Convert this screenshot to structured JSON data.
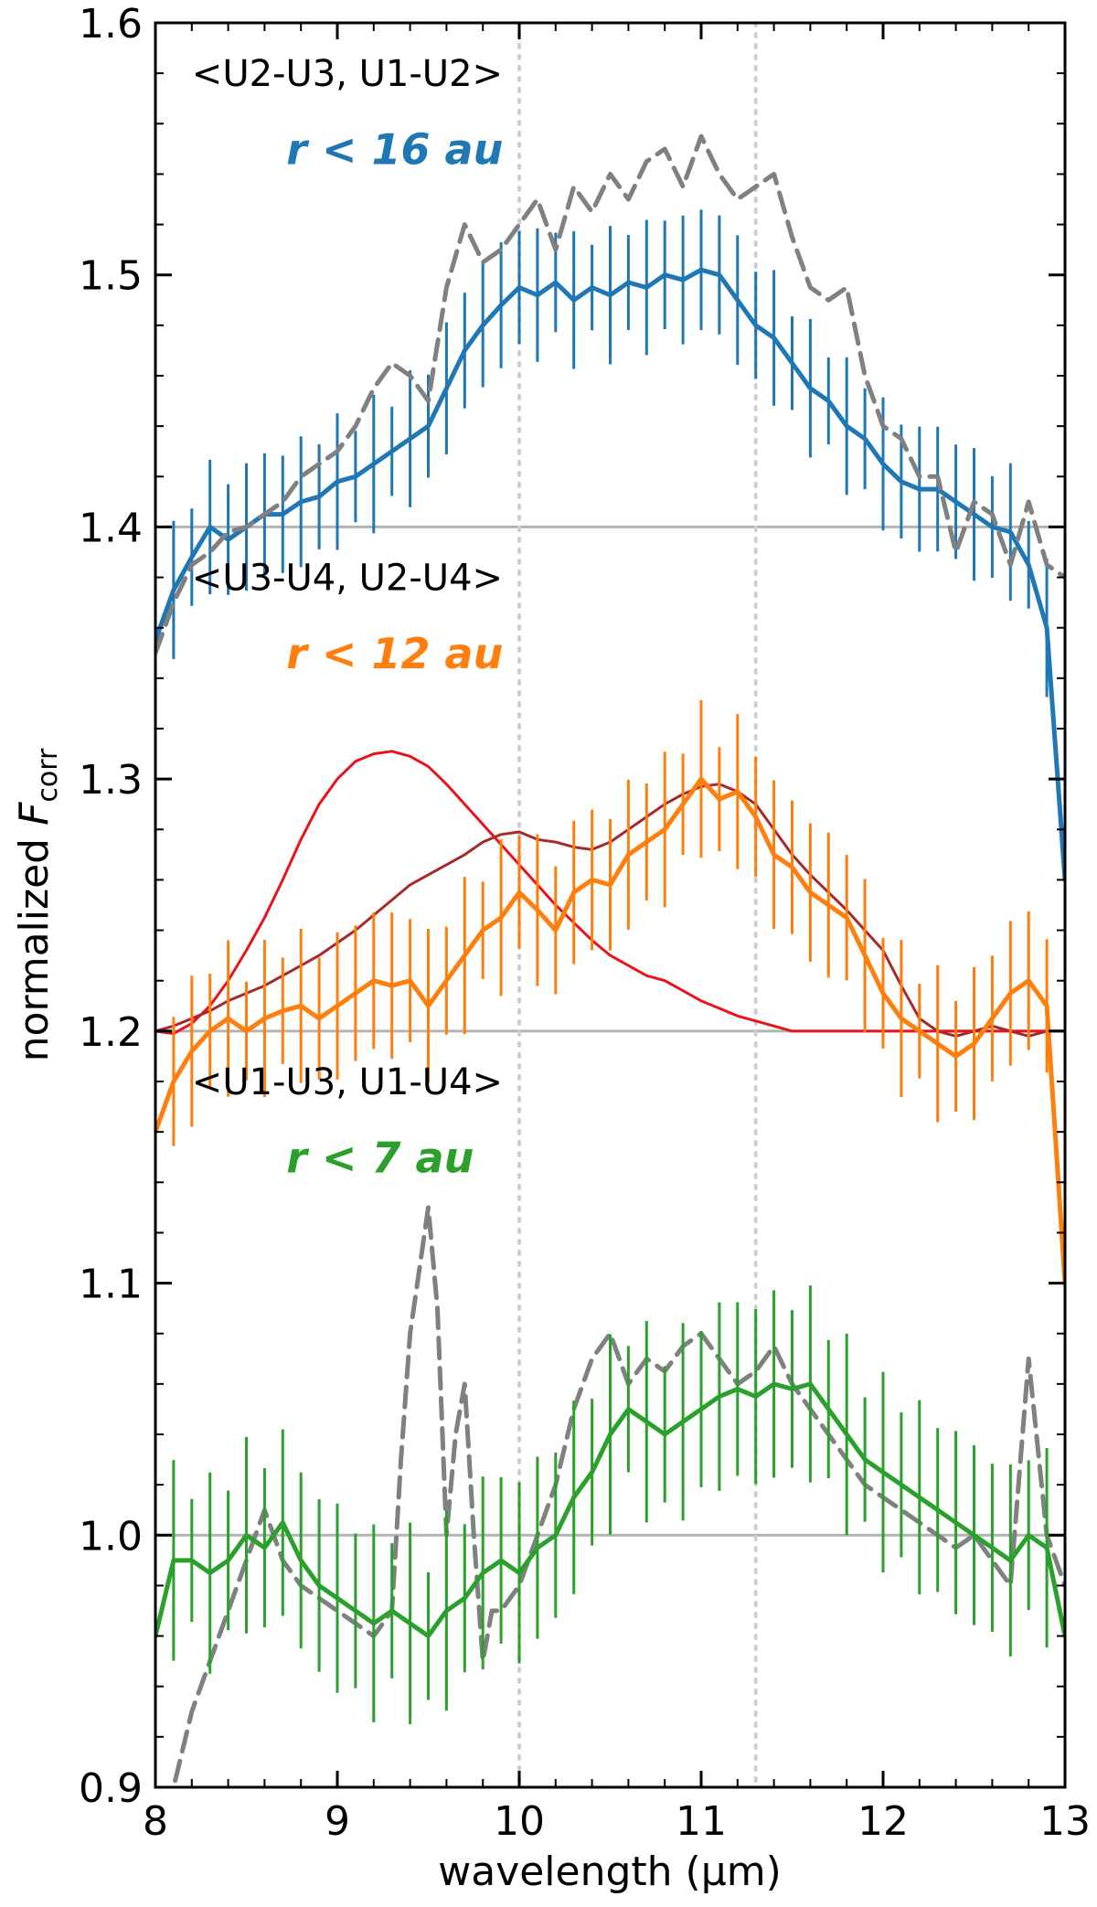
{
  "chart_data": {
    "type": "line",
    "xlabel": "wavelength (μm)",
    "ylabel_prefix": "normalized ",
    "ylabel_var": "F",
    "ylabel_sub": "corr",
    "xlim": [
      8,
      13
    ],
    "ylim": [
      0.9,
      1.6
    ],
    "xticks": [
      8,
      9,
      10,
      11,
      12,
      13
    ],
    "xtick_labels": [
      "8",
      "9",
      "10",
      "11",
      "12",
      "13"
    ],
    "yticks": [
      0.9,
      1.0,
      1.1,
      1.2,
      1.3,
      1.4,
      1.5,
      1.6
    ],
    "ytick_labels": [
      "0.9",
      "1.0",
      "1.1",
      "1.2",
      "1.3",
      "1.4",
      "1.5",
      "1.6"
    ],
    "vlines": [
      10.0,
      11.3
    ],
    "baselines": [
      1.0,
      1.2,
      1.4
    ],
    "annotations": [
      {
        "text": "<U2-U3, U1-U2>",
        "x": 8.2,
        "y": 1.575,
        "style": "plain",
        "color": "#000000"
      },
      {
        "text": "r < 16 au",
        "x": 8.72,
        "y": 1.544,
        "style": "bold-italic",
        "color": "#1f77b4"
      },
      {
        "text": "<U3-U4, U2-U4>",
        "x": 8.2,
        "y": 1.375,
        "style": "plain",
        "color": "#000000"
      },
      {
        "text": "r < 12 au",
        "x": 8.72,
        "y": 1.344,
        "style": "bold-italic",
        "color": "#ff7f0e"
      },
      {
        "text": "<U1-U3, U1-U4>",
        "x": 8.2,
        "y": 1.175,
        "style": "plain",
        "color": "#000000"
      },
      {
        "text": "r < 7 au",
        "x": 8.72,
        "y": 1.144,
        "style": "bold-italic",
        "color": "#2ca02c"
      }
    ],
    "series": [
      {
        "color": "#1f77b4",
        "style": "solid-errorbars",
        "err": 0.022,
        "x": [
          8.0,
          8.1,
          8.2,
          8.3,
          8.4,
          8.5,
          8.6,
          8.7,
          8.8,
          8.9,
          9.0,
          9.1,
          9.2,
          9.3,
          9.4,
          9.5,
          9.6,
          9.7,
          9.8,
          9.9,
          10.0,
          10.1,
          10.2,
          10.3,
          10.4,
          10.5,
          10.6,
          10.7,
          10.8,
          10.9,
          11.0,
          11.1,
          11.2,
          11.3,
          11.4,
          11.5,
          11.6,
          11.7,
          11.8,
          11.9,
          12.0,
          12.1,
          12.2,
          12.3,
          12.4,
          12.5,
          12.6,
          12.7,
          12.8,
          12.9,
          13.0
        ],
        "y": [
          1.355,
          1.375,
          1.388,
          1.4,
          1.395,
          1.4,
          1.405,
          1.405,
          1.41,
          1.412,
          1.418,
          1.42,
          1.425,
          1.43,
          1.435,
          1.44,
          1.455,
          1.47,
          1.48,
          1.488,
          1.495,
          1.492,
          1.497,
          1.49,
          1.495,
          1.492,
          1.497,
          1.495,
          1.5,
          1.498,
          1.502,
          1.5,
          1.49,
          1.48,
          1.475,
          1.465,
          1.455,
          1.45,
          1.44,
          1.435,
          1.425,
          1.418,
          1.415,
          1.415,
          1.41,
          1.405,
          1.4,
          1.398,
          1.385,
          1.36,
          1.26
        ]
      },
      {
        "color": "#808080",
        "style": "dashed",
        "x": [
          8.0,
          8.1,
          8.2,
          8.3,
          8.4,
          8.5,
          8.6,
          8.7,
          8.8,
          8.9,
          9.0,
          9.1,
          9.2,
          9.3,
          9.4,
          9.5,
          9.6,
          9.7,
          9.8,
          9.9,
          10.0,
          10.1,
          10.2,
          10.3,
          10.4,
          10.5,
          10.6,
          10.7,
          10.8,
          10.9,
          11.0,
          11.1,
          11.2,
          11.3,
          11.4,
          11.5,
          11.6,
          11.7,
          11.8,
          11.9,
          12.0,
          12.1,
          12.2,
          12.3,
          12.4,
          12.5,
          12.6,
          12.7,
          12.8,
          12.9,
          13.0
        ],
        "y": [
          1.35,
          1.37,
          1.385,
          1.39,
          1.398,
          1.4,
          1.405,
          1.41,
          1.42,
          1.425,
          1.43,
          1.44,
          1.455,
          1.465,
          1.46,
          1.45,
          1.495,
          1.52,
          1.505,
          1.51,
          1.52,
          1.53,
          1.51,
          1.535,
          1.525,
          1.54,
          1.53,
          1.545,
          1.55,
          1.535,
          1.555,
          1.54,
          1.53,
          1.535,
          1.54,
          1.515,
          1.495,
          1.49,
          1.495,
          1.46,
          1.44,
          1.435,
          1.42,
          1.42,
          1.39,
          1.41,
          1.405,
          1.385,
          1.41,
          1.385,
          1.38
        ]
      },
      {
        "color": "#e8141c",
        "style": "thin",
        "x": [
          8.0,
          8.1,
          8.2,
          8.3,
          8.4,
          8.5,
          8.6,
          8.7,
          8.8,
          8.9,
          9.0,
          9.1,
          9.2,
          9.3,
          9.4,
          9.5,
          9.6,
          9.7,
          9.8,
          9.9,
          10.0,
          10.1,
          10.2,
          10.3,
          10.4,
          10.5,
          10.6,
          10.7,
          10.8,
          10.9,
          11.0,
          11.1,
          11.2,
          11.3,
          11.4,
          11.5,
          11.6,
          11.7,
          11.8,
          11.9,
          12.0,
          12.1,
          12.2,
          12.3,
          12.4,
          12.5,
          12.6,
          12.7,
          12.8,
          12.9,
          13.0
        ],
        "y": [
          1.2,
          1.199,
          1.203,
          1.21,
          1.22,
          1.232,
          1.245,
          1.26,
          1.276,
          1.29,
          1.3,
          1.307,
          1.31,
          1.311,
          1.309,
          1.305,
          1.298,
          1.29,
          1.282,
          1.274,
          1.266,
          1.258,
          1.25,
          1.243,
          1.236,
          1.23,
          1.226,
          1.222,
          1.22,
          1.216,
          1.212,
          1.209,
          1.206,
          1.204,
          1.202,
          1.2,
          1.2,
          1.2,
          1.2,
          1.2,
          1.2,
          1.2,
          1.2,
          1.2,
          1.2,
          1.2,
          1.2,
          1.2,
          1.2,
          1.2,
          1.2
        ]
      },
      {
        "color": "#a52a2a",
        "style": "thin",
        "x": [
          8.0,
          8.1,
          8.2,
          8.3,
          8.4,
          8.5,
          8.6,
          8.7,
          8.8,
          8.9,
          9.0,
          9.1,
          9.2,
          9.3,
          9.4,
          9.5,
          9.6,
          9.7,
          9.8,
          9.9,
          10.0,
          10.1,
          10.2,
          10.3,
          10.4,
          10.5,
          10.6,
          10.7,
          10.8,
          10.9,
          11.0,
          11.1,
          11.2,
          11.3,
          11.4,
          11.5,
          11.6,
          11.7,
          11.8,
          11.9,
          12.0,
          12.1,
          12.2,
          12.3,
          12.4,
          12.5,
          12.6,
          12.7,
          12.8,
          12.9,
          13.0
        ],
        "y": [
          1.2,
          1.202,
          1.205,
          1.208,
          1.212,
          1.215,
          1.218,
          1.222,
          1.226,
          1.23,
          1.235,
          1.24,
          1.246,
          1.252,
          1.258,
          1.262,
          1.266,
          1.27,
          1.275,
          1.278,
          1.279,
          1.276,
          1.275,
          1.273,
          1.272,
          1.275,
          1.28,
          1.285,
          1.29,
          1.294,
          1.297,
          1.298,
          1.295,
          1.29,
          1.28,
          1.27,
          1.262,
          1.255,
          1.248,
          1.24,
          1.232,
          1.218,
          1.205,
          1.2,
          1.198,
          1.2,
          1.202,
          1.2,
          1.198,
          1.2,
          1.2
        ]
      },
      {
        "color": "#ff7f0e",
        "style": "solid-errorbars",
        "err": 0.025,
        "x": [
          8.0,
          8.1,
          8.2,
          8.3,
          8.4,
          8.5,
          8.6,
          8.7,
          8.8,
          8.9,
          9.0,
          9.1,
          9.2,
          9.3,
          9.4,
          9.5,
          9.6,
          9.7,
          9.8,
          9.9,
          10.0,
          10.1,
          10.2,
          10.3,
          10.4,
          10.5,
          10.6,
          10.7,
          10.8,
          10.9,
          11.0,
          11.1,
          11.2,
          11.3,
          11.4,
          11.5,
          11.6,
          11.7,
          11.8,
          11.9,
          12.0,
          12.1,
          12.2,
          12.3,
          12.4,
          12.5,
          12.6,
          12.7,
          12.8,
          12.9,
          13.0
        ],
        "y": [
          1.16,
          1.18,
          1.192,
          1.2,
          1.205,
          1.2,
          1.205,
          1.208,
          1.21,
          1.205,
          1.21,
          1.215,
          1.22,
          1.218,
          1.22,
          1.21,
          1.22,
          1.23,
          1.24,
          1.245,
          1.255,
          1.248,
          1.24,
          1.255,
          1.26,
          1.258,
          1.27,
          1.275,
          1.28,
          1.29,
          1.3,
          1.292,
          1.295,
          1.285,
          1.27,
          1.265,
          1.255,
          1.25,
          1.245,
          1.23,
          1.215,
          1.205,
          1.2,
          1.195,
          1.19,
          1.195,
          1.205,
          1.215,
          1.22,
          1.21,
          1.1
        ]
      },
      {
        "color": "#808080",
        "style": "dashed",
        "x": [
          8.0,
          8.1,
          8.2,
          8.3,
          8.4,
          8.5,
          8.6,
          8.7,
          8.8,
          8.9,
          9.0,
          9.1,
          9.2,
          9.3,
          9.35,
          9.4,
          9.5,
          9.55,
          9.6,
          9.65,
          9.7,
          9.75,
          9.8,
          9.85,
          9.9,
          10.0,
          10.1,
          10.2,
          10.3,
          10.4,
          10.5,
          10.6,
          10.7,
          10.8,
          10.9,
          11.0,
          11.1,
          11.2,
          11.3,
          11.4,
          11.5,
          11.6,
          11.7,
          11.8,
          11.9,
          12.0,
          12.1,
          12.2,
          12.3,
          12.4,
          12.5,
          12.6,
          12.7,
          12.8,
          12.9,
          13.0
        ],
        "y": [
          0.88,
          0.9,
          0.93,
          0.95,
          0.97,
          0.99,
          1.01,
          0.99,
          0.98,
          0.975,
          0.97,
          0.965,
          0.96,
          0.97,
          1.03,
          1.08,
          1.13,
          1.09,
          1.0,
          1.04,
          1.06,
          1.0,
          0.95,
          0.97,
          0.97,
          0.98,
          1.0,
          1.02,
          1.05,
          1.07,
          1.08,
          1.06,
          1.07,
          1.065,
          1.075,
          1.08,
          1.07,
          1.06,
          1.065,
          1.075,
          1.06,
          1.05,
          1.04,
          1.03,
          1.02,
          1.015,
          1.01,
          1.005,
          1.0,
          0.995,
          1.0,
          0.99,
          0.98,
          1.07,
          1.0,
          0.98
        ]
      },
      {
        "color": "#2ca02c",
        "style": "solid-errorbars",
        "err": 0.032,
        "x": [
          8.0,
          8.1,
          8.2,
          8.3,
          8.4,
          8.5,
          8.6,
          8.7,
          8.8,
          8.9,
          9.0,
          9.1,
          9.2,
          9.3,
          9.4,
          9.5,
          9.6,
          9.7,
          9.8,
          9.9,
          10.0,
          10.1,
          10.2,
          10.3,
          10.4,
          10.5,
          10.6,
          10.7,
          10.8,
          10.9,
          11.0,
          11.1,
          11.2,
          11.3,
          11.4,
          11.5,
          11.6,
          11.7,
          11.8,
          11.9,
          12.0,
          12.1,
          12.2,
          12.3,
          12.4,
          12.5,
          12.6,
          12.7,
          12.8,
          12.9,
          13.0
        ],
        "y": [
          0.96,
          0.99,
          0.99,
          0.985,
          0.99,
          1.0,
          0.995,
          1.005,
          0.99,
          0.98,
          0.975,
          0.97,
          0.965,
          0.97,
          0.965,
          0.96,
          0.97,
          0.975,
          0.985,
          0.99,
          0.985,
          0.995,
          1.0,
          1.015,
          1.025,
          1.04,
          1.05,
          1.045,
          1.04,
          1.045,
          1.05,
          1.055,
          1.058,
          1.055,
          1.06,
          1.058,
          1.06,
          1.05,
          1.04,
          1.03,
          1.025,
          1.02,
          1.015,
          1.01,
          1.005,
          1.0,
          0.995,
          0.99,
          1.0,
          0.995,
          0.96
        ]
      }
    ]
  }
}
